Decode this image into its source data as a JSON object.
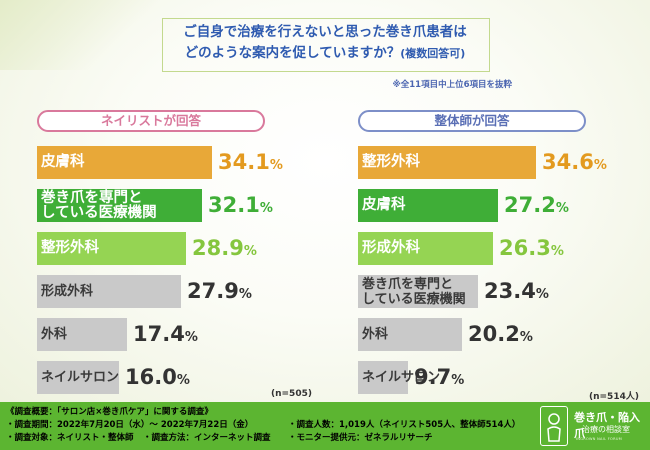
{
  "question": {
    "line1": "ご自身で治療を行えないと思った巻き爪患者は",
    "line2": "どのような案内を促していますか？",
    "line2_small": "(複数回答可)",
    "note": "※全11項目中上位6項目を抜粋"
  },
  "chart_data": [
    {
      "type": "bar",
      "title": "ネイリストが回答",
      "n_label": "(n=505)",
      "categories": [
        "皮膚科",
        "巻き爪を専門と\nしている医療機関",
        "整形外科",
        "形成外科",
        "外科",
        "ネイルサロン"
      ],
      "values": [
        34.1,
        32.1,
        28.9,
        27.9,
        17.4,
        16.0
      ],
      "value_labels": [
        [
          "34.1",
          "%"
        ],
        [
          "32.1",
          "%"
        ],
        [
          "28.9",
          "%"
        ],
        [
          "27.9",
          "%"
        ],
        [
          "17.4",
          "%"
        ],
        [
          "16.0",
          "%"
        ]
      ],
      "bar_colors": [
        "#e8a838",
        "#3fae37",
        "#95d453",
        "#c9c9c9",
        "#c9c9c9",
        "#c9c9c9"
      ],
      "value_colors": [
        "#e39a1f",
        "#3fae37",
        "#85c63e",
        "#333333",
        "#333333",
        "#333333"
      ],
      "ylim": [
        0,
        34.6
      ]
    },
    {
      "type": "bar",
      "title": "整体師が回答",
      "n_label": "(n=514人)",
      "categories": [
        "整形外科",
        "皮膚科",
        "形成外科",
        "巻き爪を専門と\nしている医療機関",
        "外科",
        "ネイルサロン"
      ],
      "values": [
        34.6,
        27.2,
        26.3,
        23.4,
        20.2,
        9.7
      ],
      "value_labels": [
        [
          "34.6",
          "%"
        ],
        [
          "27.2",
          "%"
        ],
        [
          "26.3",
          "%"
        ],
        [
          "23.4",
          "%"
        ],
        [
          "20.2",
          "%"
        ],
        [
          "9.7",
          "%"
        ]
      ],
      "bar_colors": [
        "#e8a838",
        "#3fae37",
        "#95d453",
        "#c9c9c9",
        "#c9c9c9",
        "#c9c9c9"
      ],
      "value_colors": [
        "#e39a1f",
        "#3fae37",
        "#85c63e",
        "#333333",
        "#333333",
        "#333333"
      ],
      "ylim": [
        0,
        34.6
      ]
    }
  ],
  "footer": {
    "heading": "《調査概要：「サロン店×巻き爪ケア」に関する調査》",
    "period": "・調査期間：2022年7月20日（水）～ 2022年7月22日（金）",
    "target": "・調査対象：ネイリスト・整体師",
    "method": "・調査方法：インターネット調査",
    "count": "・調査人数：1,019人（ネイリスト505人、整体師514人）",
    "provider": "・モニター提供元：ゼネラルリサーチ"
  },
  "logo": {
    "title": "巻き爪・陥入爪",
    "subtitle": "治療の相談室",
    "tagline": "INGROWN NAIL FORUM"
  }
}
